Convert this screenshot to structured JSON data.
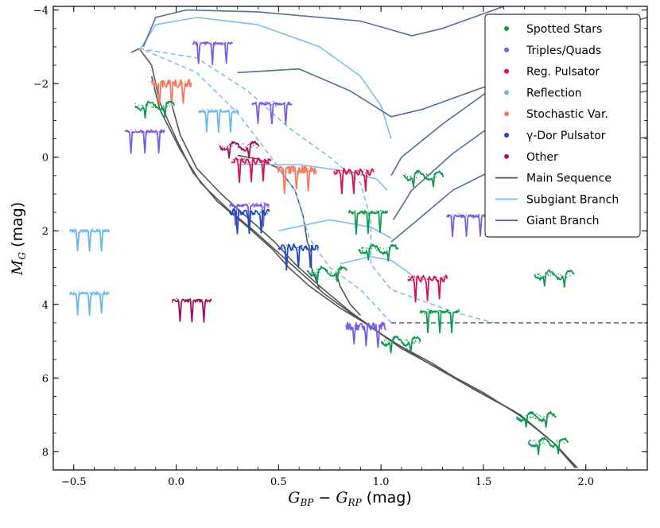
{
  "chart_data": {
    "type": "scatter",
    "xlabel": {
      "main": "G",
      "sub1": "BP",
      "mid": " − ",
      "main2": "G",
      "sub2": "RP",
      "unit": " (mag)"
    },
    "ylabel": {
      "main": "M",
      "sub": "G",
      "unit": " (mag)"
    },
    "xlim": [
      -0.6,
      2.3
    ],
    "ylim": [
      8.5,
      -4.1
    ],
    "x_ticks": [
      -0.5,
      0.0,
      0.5,
      1.0,
      1.5,
      2.0
    ],
    "x_tick_labels": [
      "−0.5",
      "0.0",
      "0.5",
      "1.0",
      "1.5",
      "2.0"
    ],
    "y_ticks": [
      -4,
      -2,
      0,
      2,
      4,
      6,
      8
    ],
    "y_tick_labels": [
      "−4",
      "−2",
      "0",
      "2",
      "4",
      "6",
      "8"
    ],
    "legend_position": "top-right",
    "legend": [
      {
        "label": "Spotted Stars",
        "kind": "dot",
        "color": "#109a4f"
      },
      {
        "label": "Triples/Quads",
        "kind": "dot",
        "color": "#7a5ee0"
      },
      {
        "label": "Reg. Pulsator",
        "kind": "dot",
        "color": "#d6134e"
      },
      {
        "label": "Reflection",
        "kind": "dot",
        "color": "#6ab7ec"
      },
      {
        "label": "Stochastic Var.",
        "kind": "dot",
        "color": "#f47a62"
      },
      {
        "label": "γ-Dor Pulsator",
        "kind": "dot",
        "color": "#1f48b8"
      },
      {
        "label": "Other",
        "kind": "dot",
        "color": "#a0125f"
      },
      {
        "label": "Main Sequence",
        "kind": "line",
        "color": "#555555"
      },
      {
        "label": "Subgiant Branch",
        "kind": "line",
        "color": "#7dbef0"
      },
      {
        "label": "Giant Branch",
        "kind": "line",
        "color": "#566b9e"
      }
    ],
    "category_colors": {
      "spotted": "#109a4f",
      "triples": "#7a5ee0",
      "regpuls": "#d6134e",
      "reflection": "#6ab7ec",
      "stochastic": "#f47a62",
      "gdor": "#1f48b8",
      "other": "#a0125f"
    },
    "track_colors": {
      "main_sequence": "#555555",
      "subgiant": "#7dbef0",
      "giant": "#566b9e"
    },
    "light_curve_insets": [
      {
        "category": "triples",
        "x": 0.08,
        "y": -3.1,
        "pattern": "eclipse3"
      },
      {
        "category": "stochastic",
        "x": -0.12,
        "y": -2.0,
        "pattern": "noisy"
      },
      {
        "category": "spotted",
        "x": -0.2,
        "y": -1.4,
        "pattern": "spots"
      },
      {
        "category": "triples",
        "x": -0.25,
        "y": -0.7,
        "pattern": "eclipse3"
      },
      {
        "category": "reflection",
        "x": 0.11,
        "y": -1.25,
        "pattern": "eclipse2"
      },
      {
        "category": "triples",
        "x": 0.37,
        "y": -1.45,
        "pattern": "eclipse3"
      },
      {
        "category": "other",
        "x": 0.21,
        "y": -0.3,
        "pattern": "spots"
      },
      {
        "category": "regpuls",
        "x": 0.27,
        "y": 0.1,
        "pattern": "pulse"
      },
      {
        "category": "stochastic",
        "x": 0.49,
        "y": 0.35,
        "pattern": "noisy"
      },
      {
        "category": "triples",
        "x": 0.26,
        "y": 1.3,
        "pattern": "eclipse3"
      },
      {
        "category": "gdor",
        "x": 0.26,
        "y": 1.5,
        "pattern": "pulse"
      },
      {
        "category": "gdor",
        "x": 0.5,
        "y": 2.45,
        "pattern": "pulse"
      },
      {
        "category": "regpuls",
        "x": 0.77,
        "y": 0.4,
        "pattern": "pulse"
      },
      {
        "category": "spotted",
        "x": 0.84,
        "y": 1.5,
        "pattern": "eclipse2"
      },
      {
        "category": "spotted",
        "x": 1.11,
        "y": 0.5,
        "pattern": "spots"
      },
      {
        "category": "spotted",
        "x": 0.89,
        "y": 2.5,
        "pattern": "spots"
      },
      {
        "category": "spotted",
        "x": 0.64,
        "y": 3.1,
        "pattern": "spots"
      },
      {
        "category": "triples",
        "x": 1.32,
        "y": 1.6,
        "pattern": "eclipse3"
      },
      {
        "category": "regpuls",
        "x": 1.13,
        "y": 3.3,
        "pattern": "pulse"
      },
      {
        "category": "spotted",
        "x": 1.19,
        "y": 4.2,
        "pattern": "eclipse2"
      },
      {
        "category": "reflection",
        "x": -0.52,
        "y": 2.0,
        "pattern": "eclipse2"
      },
      {
        "category": "reflection",
        "x": -0.52,
        "y": 3.7,
        "pattern": "eclipse2"
      },
      {
        "category": "other",
        "x": -0.02,
        "y": 3.9,
        "pattern": "eclipse2"
      },
      {
        "category": "triples",
        "x": 0.83,
        "y": 4.6,
        "pattern": "noisy"
      },
      {
        "category": "spotted",
        "x": 1.0,
        "y": 5.0,
        "pattern": "spots"
      },
      {
        "category": "spotted",
        "x": 1.75,
        "y": 3.2,
        "pattern": "spots"
      },
      {
        "category": "spotted",
        "x": 1.66,
        "y": 7.05,
        "pattern": "spots"
      },
      {
        "category": "spotted",
        "x": 1.72,
        "y": 7.75,
        "pattern": "spots"
      }
    ],
    "tracks": [
      {
        "type": "main_sequence",
        "points": [
          [
            -0.22,
            -2.85
          ],
          [
            -0.18,
            -2.95
          ],
          [
            -0.12,
            -2.5
          ],
          [
            -0.08,
            -1.5
          ],
          [
            0.0,
            -0.5
          ],
          [
            0.08,
            0.4
          ],
          [
            0.2,
            1.2
          ],
          [
            0.35,
            1.9
          ],
          [
            0.47,
            2.5
          ],
          [
            0.55,
            3.0
          ],
          [
            0.65,
            3.5
          ],
          [
            0.8,
            4.1
          ],
          [
            0.95,
            4.6
          ],
          [
            1.1,
            5.2
          ],
          [
            1.3,
            5.8
          ],
          [
            1.5,
            6.4
          ],
          [
            1.7,
            7.1
          ],
          [
            1.85,
            7.8
          ],
          [
            1.95,
            8.4
          ]
        ]
      },
      {
        "type": "main_sequence",
        "points": [
          [
            -0.12,
            -2.2
          ],
          [
            -0.08,
            -1.3
          ],
          [
            0.02,
            -0.2
          ],
          [
            0.12,
            0.7
          ],
          [
            0.25,
            1.4
          ],
          [
            0.38,
            2.0
          ],
          [
            0.5,
            2.6
          ],
          [
            0.6,
            3.1
          ],
          [
            0.72,
            3.7
          ],
          [
            0.88,
            4.35
          ],
          [
            1.05,
            5.0
          ],
          [
            1.25,
            5.6
          ],
          [
            1.45,
            6.3
          ],
          [
            1.68,
            7.0
          ],
          [
            1.85,
            7.8
          ],
          [
            1.96,
            8.45
          ]
        ]
      },
      {
        "type": "main_sequence",
        "points": [
          [
            -0.02,
            -1.4
          ],
          [
            0.02,
            -0.6
          ],
          [
            0.1,
            0.3
          ],
          [
            0.22,
            1.0
          ],
          [
            0.36,
            1.7
          ],
          [
            0.48,
            2.3
          ],
          [
            0.58,
            2.9
          ],
          [
            0.7,
            3.5
          ],
          [
            0.85,
            4.2
          ],
          [
            1.0,
            4.8
          ],
          [
            1.2,
            5.5
          ],
          [
            1.42,
            6.2
          ],
          [
            1.65,
            6.9
          ],
          [
            1.84,
            7.75
          ],
          [
            1.95,
            8.45
          ]
        ]
      },
      {
        "type": "main_sequence",
        "points": [
          [
            0.3,
            -0.05
          ],
          [
            0.4,
            0.05
          ],
          [
            0.5,
            0.3
          ],
          [
            0.58,
            0.9
          ],
          [
            0.62,
            1.6
          ],
          [
            0.64,
            2.3
          ],
          [
            0.66,
            2.6
          ],
          [
            0.66,
            3.0
          ],
          [
            0.7,
            3.6
          ]
        ]
      },
      {
        "type": "main_sequence",
        "points": [
          [
            0.78,
            3.1
          ],
          [
            0.8,
            3.5
          ],
          [
            0.85,
            4.0
          ],
          [
            0.9,
            4.3
          ]
        ]
      },
      {
        "type": "subgiant",
        "points": [
          [
            -0.18,
            -2.9
          ],
          [
            -0.1,
            -3.6
          ],
          [
            0.1,
            -3.8
          ],
          [
            0.4,
            -3.6
          ],
          [
            0.7,
            -3.0
          ],
          [
            0.9,
            -2.2
          ],
          [
            1.0,
            -1.4
          ],
          [
            1.05,
            -0.5
          ]
        ]
      },
      {
        "type": "subgiant",
        "points": [
          [
            0.3,
            0.2
          ],
          [
            0.6,
            0.2
          ],
          [
            0.85,
            0.4
          ],
          [
            0.98,
            0.6
          ],
          [
            1.03,
            0.9
          ]
        ]
      },
      {
        "type": "subgiant",
        "points": [
          [
            0.5,
            2.0
          ],
          [
            0.75,
            1.7
          ],
          [
            0.95,
            1.9
          ],
          [
            1.05,
            2.2
          ]
        ]
      },
      {
        "type": "subgiant",
        "points": [
          [
            0.8,
            2.9
          ],
          [
            0.95,
            2.7
          ],
          [
            1.05,
            2.8
          ],
          [
            1.15,
            3.2
          ]
        ]
      },
      {
        "type": "subgiant_dashed",
        "points": [
          [
            -0.18,
            -2.95
          ],
          [
            0.1,
            -2.7
          ],
          [
            0.35,
            -1.8
          ],
          [
            0.55,
            -0.8
          ],
          [
            0.75,
            0.0
          ],
          [
            0.9,
            0.7
          ],
          [
            0.95,
            1.7
          ],
          [
            0.95,
            2.9
          ],
          [
            1.05,
            3.6
          ],
          [
            1.35,
            4.2
          ],
          [
            1.55,
            4.5
          ]
        ]
      },
      {
        "type": "subgiant_dashed",
        "points": [
          [
            -0.15,
            -2.9
          ],
          [
            0.1,
            -2.3
          ],
          [
            0.3,
            -1.2
          ],
          [
            0.45,
            -0.1
          ],
          [
            0.58,
            0.9
          ],
          [
            0.65,
            2.2
          ],
          [
            0.75,
            3.0
          ],
          [
            0.9,
            3.6
          ],
          [
            1.05,
            4.5
          ]
        ]
      },
      {
        "type": "giant",
        "points": [
          [
            -0.16,
            -3.0
          ],
          [
            -0.1,
            -3.8
          ],
          [
            0.05,
            -4.0
          ],
          [
            0.4,
            -3.95
          ],
          [
            0.9,
            -3.7
          ],
          [
            1.15,
            -3.3
          ],
          [
            1.3,
            -3.5
          ],
          [
            1.6,
            -4.1
          ]
        ]
      },
      {
        "type": "giant",
        "points": [
          [
            0.3,
            -2.3
          ],
          [
            0.6,
            -2.4
          ],
          [
            0.85,
            -1.8
          ],
          [
            1.05,
            -1.1
          ],
          [
            1.2,
            -1.3
          ],
          [
            1.5,
            -1.9
          ],
          [
            1.8,
            -2.3
          ],
          [
            2.3,
            -2.6
          ]
        ]
      },
      {
        "type": "giant",
        "points": [
          [
            1.05,
            0.5
          ],
          [
            1.1,
            0.0
          ],
          [
            1.3,
            -0.9
          ],
          [
            1.55,
            -1.9
          ],
          [
            1.8,
            -2.8
          ],
          [
            2.05,
            -3.4
          ],
          [
            2.3,
            -3.8
          ]
        ]
      },
      {
        "type": "giant",
        "points": [
          [
            1.06,
            1.7
          ],
          [
            1.15,
            0.9
          ],
          [
            1.35,
            -0.1
          ],
          [
            1.55,
            -0.9
          ],
          [
            1.85,
            -1.4
          ],
          [
            2.3,
            -1.8
          ]
        ]
      },
      {
        "type": "giant",
        "points": [
          [
            1.05,
            2.3
          ],
          [
            1.18,
            1.7
          ],
          [
            1.35,
            0.9
          ],
          [
            1.6,
            0.2
          ],
          [
            1.9,
            -0.2
          ],
          [
            2.3,
            -0.55
          ]
        ]
      },
      {
        "type": "giant_dashed",
        "points": [
          [
            1.05,
            4.5
          ],
          [
            1.3,
            4.5
          ],
          [
            1.6,
            4.5
          ],
          [
            1.9,
            4.5
          ],
          [
            2.3,
            4.5
          ]
        ]
      }
    ]
  }
}
